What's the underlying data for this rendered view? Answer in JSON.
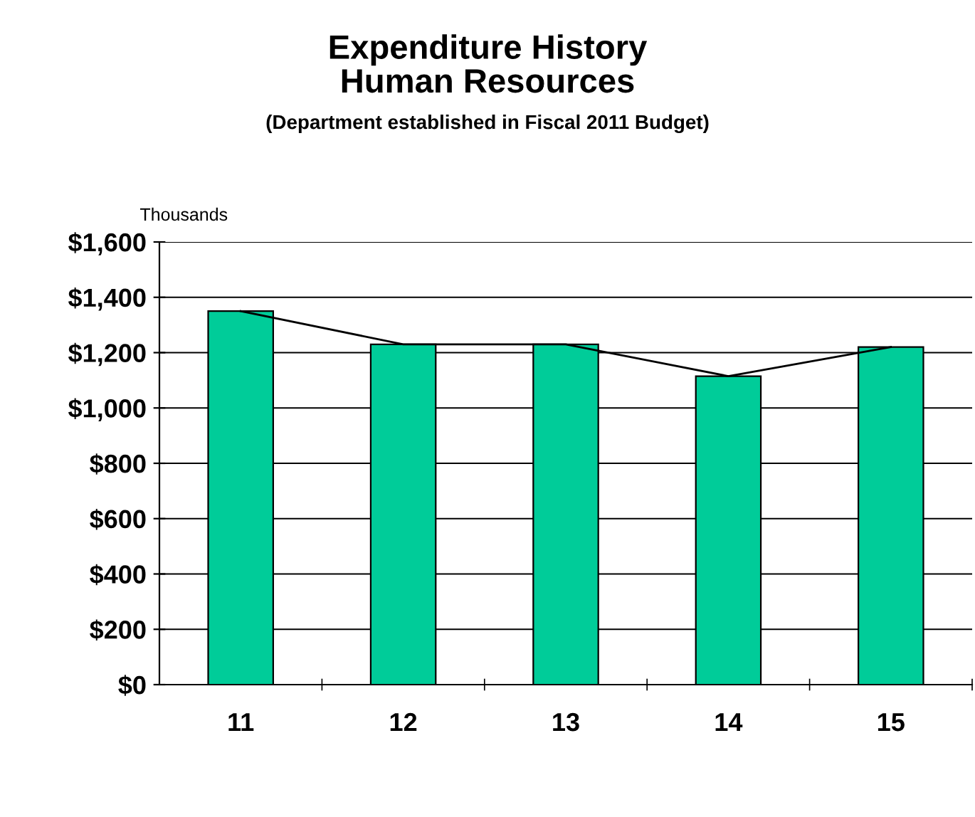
{
  "chart_data": {
    "type": "bar",
    "title": "Expenditure History\nHuman Resources",
    "subtitle": "(Department established in Fiscal 2011 Budget)",
    "ylabel": "Thousands",
    "categories": [
      "11",
      "12",
      "13",
      "14",
      "15"
    ],
    "series": [
      {
        "color": "#00cc99",
        "values": [
          1350,
          1230,
          1230,
          1115,
          1220
        ]
      },
      {
        "type": "line",
        "color": "#000000",
        "values": [
          1350,
          1230,
          1230,
          1115,
          1220
        ]
      }
    ],
    "ylim": [
      0,
      1600
    ],
    "yticks": [
      {
        "value": 0,
        "label": "$0"
      },
      {
        "value": 200,
        "label": "$200"
      },
      {
        "value": 400,
        "label": "$400"
      },
      {
        "value": 600,
        "label": "$600"
      },
      {
        "value": 800,
        "label": "$800"
      },
      {
        "value": 1000,
        "label": "$1,000"
      },
      {
        "value": 1200,
        "label": "$1,200"
      },
      {
        "value": 1400,
        "label": "$1,400"
      },
      {
        "value": 1600,
        "label": "$1,600"
      }
    ],
    "grid": "y",
    "marker": "none"
  }
}
